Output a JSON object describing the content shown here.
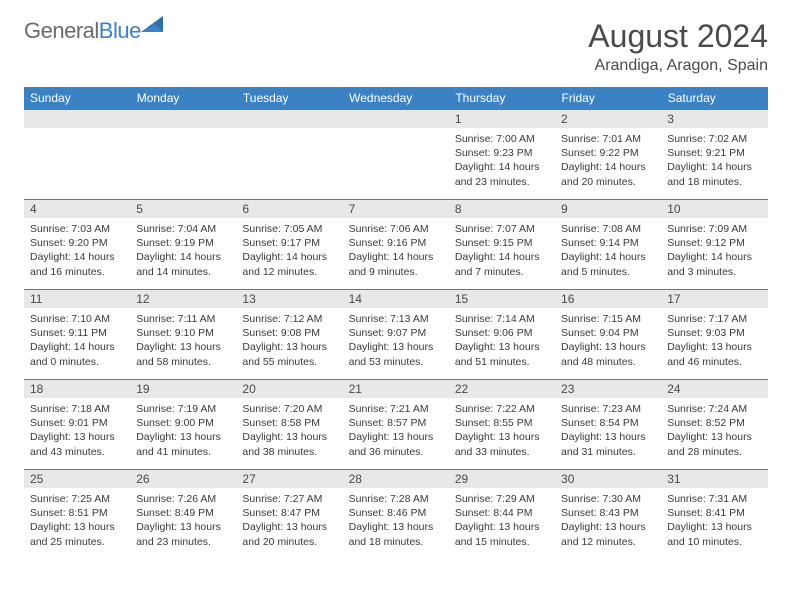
{
  "logo": {
    "general": "General",
    "blue": "Blue"
  },
  "title": "August 2024",
  "location": "Arandiga, Aragon, Spain",
  "colors": {
    "header_bg": "#3b82c4",
    "header_text": "#ffffff",
    "daynum_bg": "#e8e8e8",
    "border": "#3b82c4",
    "text": "#3a3a3a",
    "logo_gray": "#6b6b6b",
    "logo_blue": "#3b82c4"
  },
  "fonts": {
    "title_size": 32,
    "location_size": 16,
    "header_size": 12,
    "daynum_size": 12,
    "body_size": 10.5
  },
  "day_names": [
    "Sunday",
    "Monday",
    "Tuesday",
    "Wednesday",
    "Thursday",
    "Friday",
    "Saturday"
  ],
  "weeks": [
    [
      {
        "n": "",
        "sr": "",
        "ss": "",
        "dl": ""
      },
      {
        "n": "",
        "sr": "",
        "ss": "",
        "dl": ""
      },
      {
        "n": "",
        "sr": "",
        "ss": "",
        "dl": ""
      },
      {
        "n": "",
        "sr": "",
        "ss": "",
        "dl": ""
      },
      {
        "n": "1",
        "sr": "Sunrise: 7:00 AM",
        "ss": "Sunset: 9:23 PM",
        "dl": "Daylight: 14 hours and 23 minutes."
      },
      {
        "n": "2",
        "sr": "Sunrise: 7:01 AM",
        "ss": "Sunset: 9:22 PM",
        "dl": "Daylight: 14 hours and 20 minutes."
      },
      {
        "n": "3",
        "sr": "Sunrise: 7:02 AM",
        "ss": "Sunset: 9:21 PM",
        "dl": "Daylight: 14 hours and 18 minutes."
      }
    ],
    [
      {
        "n": "4",
        "sr": "Sunrise: 7:03 AM",
        "ss": "Sunset: 9:20 PM",
        "dl": "Daylight: 14 hours and 16 minutes."
      },
      {
        "n": "5",
        "sr": "Sunrise: 7:04 AM",
        "ss": "Sunset: 9:19 PM",
        "dl": "Daylight: 14 hours and 14 minutes."
      },
      {
        "n": "6",
        "sr": "Sunrise: 7:05 AM",
        "ss": "Sunset: 9:17 PM",
        "dl": "Daylight: 14 hours and 12 minutes."
      },
      {
        "n": "7",
        "sr": "Sunrise: 7:06 AM",
        "ss": "Sunset: 9:16 PM",
        "dl": "Daylight: 14 hours and 9 minutes."
      },
      {
        "n": "8",
        "sr": "Sunrise: 7:07 AM",
        "ss": "Sunset: 9:15 PM",
        "dl": "Daylight: 14 hours and 7 minutes."
      },
      {
        "n": "9",
        "sr": "Sunrise: 7:08 AM",
        "ss": "Sunset: 9:14 PM",
        "dl": "Daylight: 14 hours and 5 minutes."
      },
      {
        "n": "10",
        "sr": "Sunrise: 7:09 AM",
        "ss": "Sunset: 9:12 PM",
        "dl": "Daylight: 14 hours and 3 minutes."
      }
    ],
    [
      {
        "n": "11",
        "sr": "Sunrise: 7:10 AM",
        "ss": "Sunset: 9:11 PM",
        "dl": "Daylight: 14 hours and 0 minutes."
      },
      {
        "n": "12",
        "sr": "Sunrise: 7:11 AM",
        "ss": "Sunset: 9:10 PM",
        "dl": "Daylight: 13 hours and 58 minutes."
      },
      {
        "n": "13",
        "sr": "Sunrise: 7:12 AM",
        "ss": "Sunset: 9:08 PM",
        "dl": "Daylight: 13 hours and 55 minutes."
      },
      {
        "n": "14",
        "sr": "Sunrise: 7:13 AM",
        "ss": "Sunset: 9:07 PM",
        "dl": "Daylight: 13 hours and 53 minutes."
      },
      {
        "n": "15",
        "sr": "Sunrise: 7:14 AM",
        "ss": "Sunset: 9:06 PM",
        "dl": "Daylight: 13 hours and 51 minutes."
      },
      {
        "n": "16",
        "sr": "Sunrise: 7:15 AM",
        "ss": "Sunset: 9:04 PM",
        "dl": "Daylight: 13 hours and 48 minutes."
      },
      {
        "n": "17",
        "sr": "Sunrise: 7:17 AM",
        "ss": "Sunset: 9:03 PM",
        "dl": "Daylight: 13 hours and 46 minutes."
      }
    ],
    [
      {
        "n": "18",
        "sr": "Sunrise: 7:18 AM",
        "ss": "Sunset: 9:01 PM",
        "dl": "Daylight: 13 hours and 43 minutes."
      },
      {
        "n": "19",
        "sr": "Sunrise: 7:19 AM",
        "ss": "Sunset: 9:00 PM",
        "dl": "Daylight: 13 hours and 41 minutes."
      },
      {
        "n": "20",
        "sr": "Sunrise: 7:20 AM",
        "ss": "Sunset: 8:58 PM",
        "dl": "Daylight: 13 hours and 38 minutes."
      },
      {
        "n": "21",
        "sr": "Sunrise: 7:21 AM",
        "ss": "Sunset: 8:57 PM",
        "dl": "Daylight: 13 hours and 36 minutes."
      },
      {
        "n": "22",
        "sr": "Sunrise: 7:22 AM",
        "ss": "Sunset: 8:55 PM",
        "dl": "Daylight: 13 hours and 33 minutes."
      },
      {
        "n": "23",
        "sr": "Sunrise: 7:23 AM",
        "ss": "Sunset: 8:54 PM",
        "dl": "Daylight: 13 hours and 31 minutes."
      },
      {
        "n": "24",
        "sr": "Sunrise: 7:24 AM",
        "ss": "Sunset: 8:52 PM",
        "dl": "Daylight: 13 hours and 28 minutes."
      }
    ],
    [
      {
        "n": "25",
        "sr": "Sunrise: 7:25 AM",
        "ss": "Sunset: 8:51 PM",
        "dl": "Daylight: 13 hours and 25 minutes."
      },
      {
        "n": "26",
        "sr": "Sunrise: 7:26 AM",
        "ss": "Sunset: 8:49 PM",
        "dl": "Daylight: 13 hours and 23 minutes."
      },
      {
        "n": "27",
        "sr": "Sunrise: 7:27 AM",
        "ss": "Sunset: 8:47 PM",
        "dl": "Daylight: 13 hours and 20 minutes."
      },
      {
        "n": "28",
        "sr": "Sunrise: 7:28 AM",
        "ss": "Sunset: 8:46 PM",
        "dl": "Daylight: 13 hours and 18 minutes."
      },
      {
        "n": "29",
        "sr": "Sunrise: 7:29 AM",
        "ss": "Sunset: 8:44 PM",
        "dl": "Daylight: 13 hours and 15 minutes."
      },
      {
        "n": "30",
        "sr": "Sunrise: 7:30 AM",
        "ss": "Sunset: 8:43 PM",
        "dl": "Daylight: 13 hours and 12 minutes."
      },
      {
        "n": "31",
        "sr": "Sunrise: 7:31 AM",
        "ss": "Sunset: 8:41 PM",
        "dl": "Daylight: 13 hours and 10 minutes."
      }
    ]
  ]
}
